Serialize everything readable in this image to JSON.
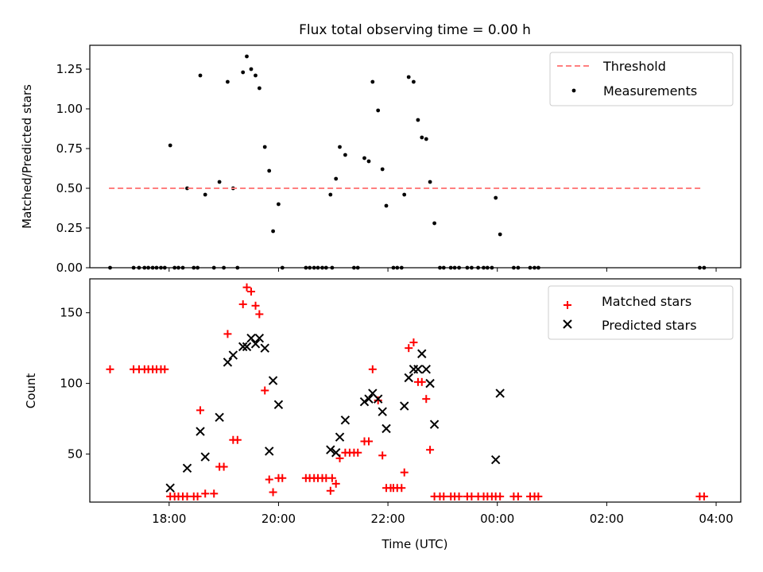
{
  "title": "Flux total observing time = 0.00 h",
  "xlabel": "Time (UTC)",
  "colors": {
    "threshold": "#ff7f7f",
    "measurements": "#000000",
    "matched": "#ff0000",
    "predicted": "#000000"
  },
  "chart_data": [
    {
      "type": "scatter",
      "title": "Flux total observing time = 0.00 h",
      "ylabel": "Matched/Predicted stars",
      "xlim": [
        16.55,
        28.45
      ],
      "ylim": [
        0,
        1.4
      ],
      "yticks": [
        0.0,
        0.25,
        0.5,
        0.75,
        1.0,
        1.25
      ],
      "ytick_labels": [
        "0.00",
        "0.25",
        "0.50",
        "0.75",
        "1.00",
        "1.25"
      ],
      "grid": false,
      "legend": "top-right",
      "threshold": {
        "name": "Threshold",
        "y": 0.5,
        "x": [
          16.9,
          27.75
        ],
        "style": "dashed"
      },
      "series": [
        {
          "name": "Measurements",
          "points": [
            [
              16.92,
              0.0
            ],
            [
              17.35,
              0.0
            ],
            [
              17.45,
              0.0
            ],
            [
              17.55,
              0.0
            ],
            [
              17.62,
              0.0
            ],
            [
              17.7,
              0.0
            ],
            [
              17.77,
              0.0
            ],
            [
              17.85,
              0.0
            ],
            [
              17.92,
              0.0
            ],
            [
              18.02,
              0.77
            ],
            [
              18.1,
              0.0
            ],
            [
              18.17,
              0.0
            ],
            [
              18.25,
              0.0
            ],
            [
              18.33,
              0.5
            ],
            [
              18.45,
              0.0
            ],
            [
              18.52,
              0.0
            ],
            [
              18.57,
              1.21
            ],
            [
              18.66,
              0.46
            ],
            [
              18.82,
              0.0
            ],
            [
              18.92,
              0.54
            ],
            [
              19.0,
              0.0
            ],
            [
              19.07,
              1.17
            ],
            [
              19.17,
              0.5
            ],
            [
              19.25,
              0.0
            ],
            [
              19.35,
              1.23
            ],
            [
              19.42,
              1.33
            ],
            [
              19.5,
              1.25
            ],
            [
              19.58,
              1.21
            ],
            [
              19.65,
              1.13
            ],
            [
              19.75,
              0.76
            ],
            [
              19.83,
              0.61
            ],
            [
              19.9,
              0.23
            ],
            [
              20.0,
              0.4
            ],
            [
              20.07,
              0.0
            ],
            [
              20.5,
              0.0
            ],
            [
              20.57,
              0.0
            ],
            [
              20.65,
              0.0
            ],
            [
              20.72,
              0.0
            ],
            [
              20.8,
              0.0
            ],
            [
              20.87,
              0.0
            ],
            [
              20.95,
              0.46
            ],
            [
              20.98,
              0.0
            ],
            [
              21.05,
              0.56
            ],
            [
              21.12,
              0.76
            ],
            [
              21.22,
              0.71
            ],
            [
              21.38,
              0.0
            ],
            [
              21.45,
              0.0
            ],
            [
              21.57,
              0.69
            ],
            [
              21.65,
              0.67
            ],
            [
              21.72,
              1.17
            ],
            [
              21.82,
              0.99
            ],
            [
              21.9,
              0.62
            ],
            [
              21.97,
              0.39
            ],
            [
              22.1,
              0.0
            ],
            [
              22.17,
              0.0
            ],
            [
              22.25,
              0.0
            ],
            [
              22.3,
              0.46
            ],
            [
              22.38,
              1.2
            ],
            [
              22.47,
              1.17
            ],
            [
              22.55,
              0.93
            ],
            [
              22.62,
              0.82
            ],
            [
              22.7,
              0.81
            ],
            [
              22.77,
              0.54
            ],
            [
              22.85,
              0.28
            ],
            [
              22.95,
              0.0
            ],
            [
              23.02,
              0.0
            ],
            [
              23.15,
              0.0
            ],
            [
              23.22,
              0.0
            ],
            [
              23.3,
              0.0
            ],
            [
              23.45,
              0.0
            ],
            [
              23.53,
              0.0
            ],
            [
              23.65,
              0.0
            ],
            [
              23.75,
              0.0
            ],
            [
              23.82,
              0.0
            ],
            [
              23.9,
              0.0
            ],
            [
              23.97,
              0.44
            ],
            [
              24.05,
              0.21
            ],
            [
              24.3,
              0.0
            ],
            [
              24.38,
              0.0
            ],
            [
              24.6,
              0.0
            ],
            [
              24.68,
              0.0
            ],
            [
              24.75,
              0.0
            ],
            [
              27.7,
              0.0
            ],
            [
              27.78,
              0.0
            ]
          ]
        }
      ]
    },
    {
      "type": "scatter",
      "ylabel": "Count",
      "xlabel": "Time (UTC)",
      "xlim": [
        16.55,
        28.45
      ],
      "ylim": [
        16,
        174
      ],
      "yticks": [
        50,
        100,
        150
      ],
      "ytick_labels": [
        "50",
        "100",
        "150"
      ],
      "xticks": [
        18,
        20,
        22,
        24,
        26,
        28
      ],
      "xtick_labels": [
        "18:00",
        "20:00",
        "22:00",
        "00:00",
        "02:00",
        "04:00"
      ],
      "grid": false,
      "legend": "top-right",
      "series": [
        {
          "name": "Matched stars",
          "marker": "+",
          "points": [
            [
              16.92,
              110
            ],
            [
              17.35,
              110
            ],
            [
              17.45,
              110
            ],
            [
              17.55,
              110
            ],
            [
              17.62,
              110
            ],
            [
              17.7,
              110
            ],
            [
              17.77,
              110
            ],
            [
              17.85,
              110
            ],
            [
              17.92,
              110
            ],
            [
              18.02,
              20
            ],
            [
              18.1,
              20
            ],
            [
              18.17,
              20
            ],
            [
              18.25,
              20
            ],
            [
              18.33,
              20
            ],
            [
              18.45,
              20
            ],
            [
              18.52,
              20
            ],
            [
              18.57,
              81
            ],
            [
              18.66,
              22
            ],
            [
              18.82,
              22
            ],
            [
              18.92,
              41
            ],
            [
              19.0,
              41
            ],
            [
              19.07,
              135
            ],
            [
              19.17,
              60
            ],
            [
              19.25,
              60
            ],
            [
              19.35,
              156
            ],
            [
              19.42,
              168
            ],
            [
              19.5,
              165
            ],
            [
              19.58,
              155
            ],
            [
              19.65,
              149
            ],
            [
              19.75,
              95
            ],
            [
              19.83,
              32
            ],
            [
              19.9,
              23
            ],
            [
              20.0,
              33
            ],
            [
              20.07,
              33
            ],
            [
              20.5,
              33
            ],
            [
              20.57,
              33
            ],
            [
              20.65,
              33
            ],
            [
              20.72,
              33
            ],
            [
              20.8,
              33
            ],
            [
              20.87,
              33
            ],
            [
              20.95,
              24
            ],
            [
              20.98,
              33
            ],
            [
              21.05,
              29
            ],
            [
              21.12,
              47
            ],
            [
              21.22,
              51
            ],
            [
              21.3,
              51
            ],
            [
              21.38,
              51
            ],
            [
              21.45,
              51
            ],
            [
              21.57,
              59
            ],
            [
              21.65,
              59
            ],
            [
              21.72,
              110
            ],
            [
              21.82,
              88
            ],
            [
              21.9,
              49
            ],
            [
              21.97,
              26
            ],
            [
              22.05,
              26
            ],
            [
              22.1,
              26
            ],
            [
              22.17,
              26
            ],
            [
              22.25,
              26
            ],
            [
              22.3,
              37
            ],
            [
              22.38,
              125
            ],
            [
              22.47,
              129
            ],
            [
              22.55,
              101
            ],
            [
              22.62,
              101
            ],
            [
              22.7,
              89
            ],
            [
              22.77,
              53
            ],
            [
              22.85,
              20
            ],
            [
              22.95,
              20
            ],
            [
              23.02,
              20
            ],
            [
              23.15,
              20
            ],
            [
              23.22,
              20
            ],
            [
              23.3,
              20
            ],
            [
              23.45,
              20
            ],
            [
              23.53,
              20
            ],
            [
              23.65,
              20
            ],
            [
              23.75,
              20
            ],
            [
              23.82,
              20
            ],
            [
              23.9,
              20
            ],
            [
              23.97,
              20
            ],
            [
              24.05,
              20
            ],
            [
              24.3,
              20
            ],
            [
              24.38,
              20
            ],
            [
              24.6,
              20
            ],
            [
              24.68,
              20
            ],
            [
              24.75,
              20
            ],
            [
              27.7,
              20
            ],
            [
              27.78,
              20
            ]
          ]
        },
        {
          "name": "Predicted stars",
          "marker": "x",
          "points": [
            [
              18.02,
              26
            ],
            [
              18.33,
              40
            ],
            [
              18.57,
              66
            ],
            [
              18.66,
              48
            ],
            [
              18.92,
              76
            ],
            [
              19.07,
              115
            ],
            [
              19.17,
              120
            ],
            [
              19.35,
              126
            ],
            [
              19.42,
              126
            ],
            [
              19.5,
              132
            ],
            [
              19.58,
              128
            ],
            [
              19.65,
              132
            ],
            [
              19.75,
              125
            ],
            [
              19.83,
              52
            ],
            [
              19.9,
              102
            ],
            [
              20.0,
              85
            ],
            [
              20.95,
              53
            ],
            [
              21.05,
              51
            ],
            [
              21.12,
              62
            ],
            [
              21.22,
              74
            ],
            [
              21.57,
              87
            ],
            [
              21.65,
              89
            ],
            [
              21.72,
              93
            ],
            [
              21.82,
              89
            ],
            [
              21.9,
              80
            ],
            [
              21.97,
              68
            ],
            [
              22.3,
              84
            ],
            [
              22.38,
              104
            ],
            [
              22.47,
              110
            ],
            [
              22.55,
              110
            ],
            [
              22.62,
              121
            ],
            [
              22.7,
              110
            ],
            [
              22.77,
              100
            ],
            [
              22.85,
              71
            ],
            [
              23.97,
              46
            ],
            [
              24.05,
              93
            ]
          ]
        }
      ]
    }
  ]
}
